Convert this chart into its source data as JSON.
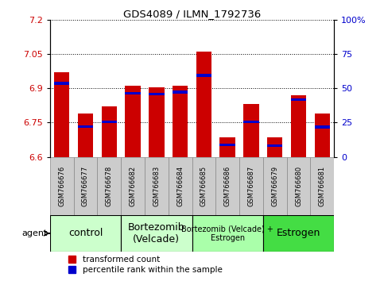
{
  "title": "GDS4089 / ILMN_1792736",
  "samples": [
    "GSM766676",
    "GSM766677",
    "GSM766678",
    "GSM766682",
    "GSM766683",
    "GSM766684",
    "GSM766685",
    "GSM766686",
    "GSM766687",
    "GSM766679",
    "GSM766680",
    "GSM766681"
  ],
  "red_values": [
    6.97,
    6.79,
    6.82,
    6.91,
    6.905,
    6.91,
    7.06,
    6.685,
    6.83,
    6.685,
    6.87,
    6.79
  ],
  "blue_values": [
    6.915,
    6.727,
    6.748,
    6.872,
    6.868,
    6.878,
    6.95,
    6.647,
    6.747,
    6.643,
    6.845,
    6.725
  ],
  "ylim": [
    6.6,
    7.2
  ],
  "yticks_left": [
    6.6,
    6.75,
    6.9,
    7.05,
    7.2
  ],
  "yticks_right_vals": [
    "0",
    "25",
    "50",
    "75",
    "100%"
  ],
  "groups": [
    {
      "label": "control",
      "start": 0,
      "end": 3,
      "color": "#ccffcc",
      "fontsize": 9
    },
    {
      "label": "Bortezomib\n(Velcade)",
      "start": 3,
      "end": 6,
      "color": "#ccffcc",
      "fontsize": 9
    },
    {
      "label": "Bortezomib (Velcade) +\nEstrogen",
      "start": 6,
      "end": 9,
      "color": "#aaffaa",
      "fontsize": 7
    },
    {
      "label": "Estrogen",
      "start": 9,
      "end": 12,
      "color": "#44dd44",
      "fontsize": 9
    }
  ],
  "bar_color_red": "#cc0000",
  "bar_color_blue": "#0000cc",
  "base": 6.6,
  "bar_width": 0.65,
  "blue_bar_height": 0.012,
  "grid_color": "black",
  "tick_label_color_left": "#cc0000",
  "tick_label_color_right": "#0000cc",
  "legend_red": "transformed count",
  "legend_blue": "percentile rank within the sample",
  "agent_label": "agent"
}
